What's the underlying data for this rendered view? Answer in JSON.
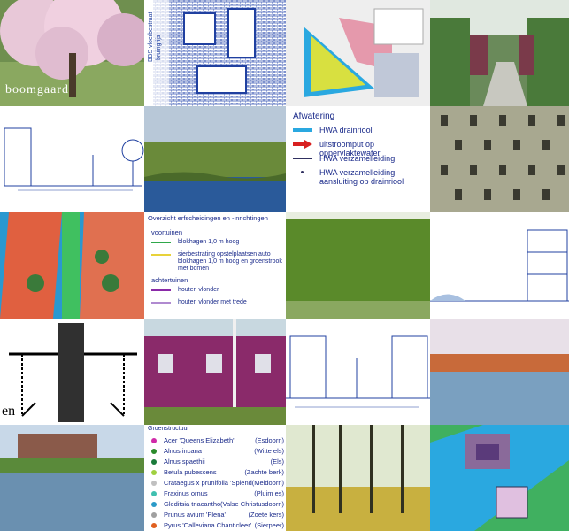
{
  "tiles": {
    "orchard_caption": "boomgaard",
    "plan_label_top": "BBS vloerbestraat",
    "plan_label_bottom": "bruingrijs",
    "partial_caption": "en"
  },
  "afwatering": {
    "title": "Afwatering",
    "items": [
      {
        "label": "HWA drainriool",
        "icon": "thick-blue-line",
        "color": "#2aa8e0"
      },
      {
        "label": "uitstroomput op oppervlaktewater",
        "icon": "red-arrow",
        "color": "#d82020"
      },
      {
        "label": "HWA verzamelleiding",
        "icon": "thin-dark-line",
        "color": "#303060"
      },
      {
        "label": "HWA verzamelleiding, aansluiting op drainriool",
        "icon": "small-dot",
        "color": "#303060"
      }
    ]
  },
  "erfscheidingen": {
    "title": "Overzicht erfscheidingen en -inrichtingen",
    "sections": [
      {
        "heading": "voortuinen",
        "items": [
          {
            "label": "blokhagen 1,0 m hoog",
            "color": "#2fa84a"
          },
          {
            "label": "sierbestrating opstelplaatsen auto\nblokhagen 1,0 m hoog en groenstrook met bomen",
            "color": "#e8d23a"
          }
        ]
      },
      {
        "heading": "achtertuinen",
        "items": [
          {
            "label": "houten vlonder",
            "color": "#8a2aa8"
          },
          {
            "label": "houten vlonder met trede",
            "color": "#b08ad0"
          }
        ]
      }
    ]
  },
  "groenstructuur": {
    "title": "Groenstructuur",
    "items": [
      {
        "name": "Acer 'Queens Elizabeth'",
        "common": "(Esdoorn)",
        "color": "#d02aa8"
      },
      {
        "name": "Alnus incana",
        "common": "(Witte els)",
        "color": "#2a8a2a"
      },
      {
        "name": "Alnus spaethii",
        "common": "(Els)",
        "color": "#1a7a3a"
      },
      {
        "name": "Betula pubescens",
        "common": "(Zachte berk)",
        "color": "#a0d040"
      },
      {
        "name": "Crataegus x prunifolia 'Splendens'",
        "common": "(Meidoorn)",
        "color": "#c0c0c0"
      },
      {
        "name": "Fraxinus ornus",
        "common": "(Pluim es)",
        "color": "#40c0b0"
      },
      {
        "name": "Gleditsia triacanthos 'Skyline'",
        "common": "(Valse Christusdoorn)",
        "color": "#2a9ac8"
      },
      {
        "name": "Prunus avium 'Plena'",
        "common": "(Zoete kers)",
        "color": "#a0a0a0"
      },
      {
        "name": "Pyrus 'Calleviana Chanticleer'",
        "common": "(Sierpeer)",
        "color": "#e06020"
      }
    ]
  }
}
